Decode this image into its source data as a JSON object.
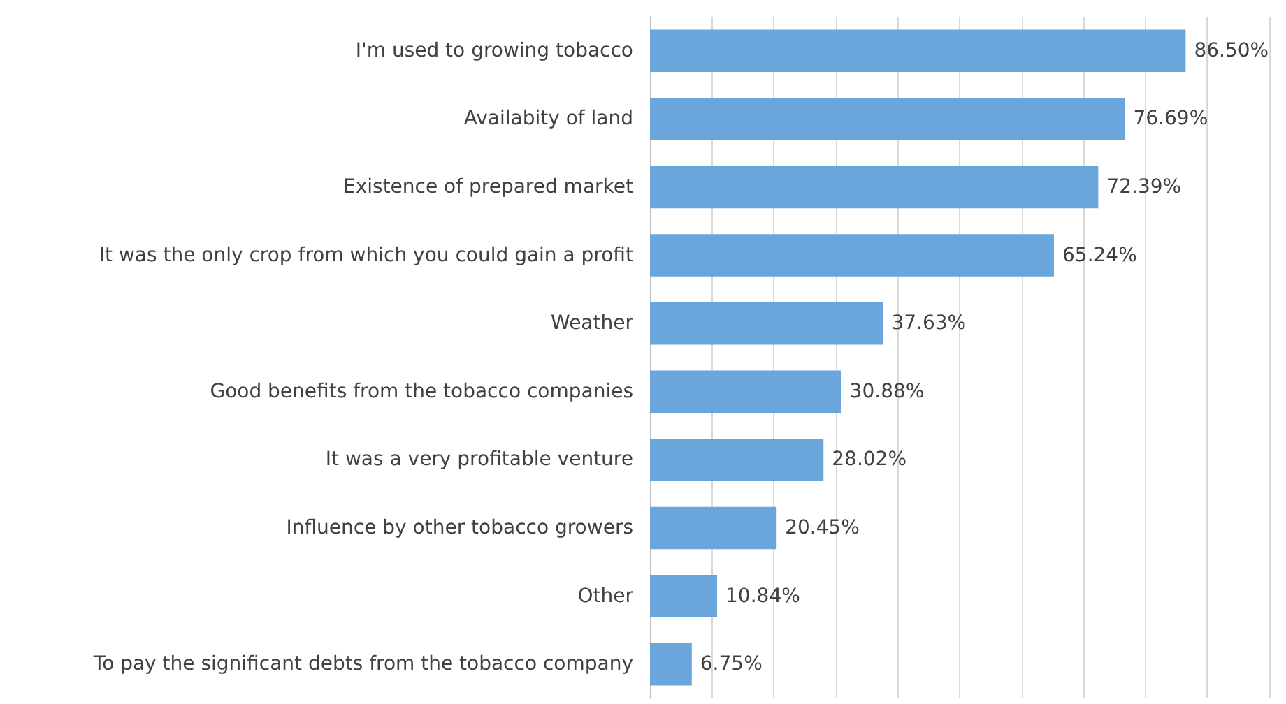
{
  "chart_data": {
    "type": "bar",
    "orientation": "horizontal",
    "categories": [
      "I'm used to growing tobacco",
      "Availabity of land",
      "Existence of prepared market",
      "It was the only crop from which you could gain a profit",
      "Weather",
      "Good benefits from the tobacco companies",
      "It was a very profitable venture",
      "Influence by other tobacco growers",
      "Other",
      "To pay the significant debts from the tobacco company"
    ],
    "values": [
      86.5,
      76.69,
      72.39,
      65.24,
      37.63,
      30.88,
      28.02,
      20.45,
      10.84,
      6.75
    ],
    "value_labels": [
      "86.50%",
      "76.69%",
      "72.39%",
      "65.24%",
      "37.63%",
      "30.88%",
      "28.02%",
      "20.45%",
      "10.84%",
      "6.75%"
    ],
    "color": "#6aa6dc",
    "xlim": [
      0,
      100
    ],
    "xticks": [
      {
        "value": 0,
        "label": null
      },
      {
        "value": 10,
        "label": null
      },
      {
        "value": 20,
        "label": null
      },
      {
        "value": 30,
        "label": null
      },
      {
        "value": 40,
        "label": null
      },
      {
        "value": 50,
        "label": null
      },
      {
        "value": 60,
        "label": null
      },
      {
        "value": 70,
        "label": null
      },
      {
        "value": 80,
        "label": null
      },
      {
        "value": 90,
        "label": null
      },
      {
        "value": 100,
        "label": null
      }
    ],
    "grid": "x",
    "tick_labels": "y"
  }
}
